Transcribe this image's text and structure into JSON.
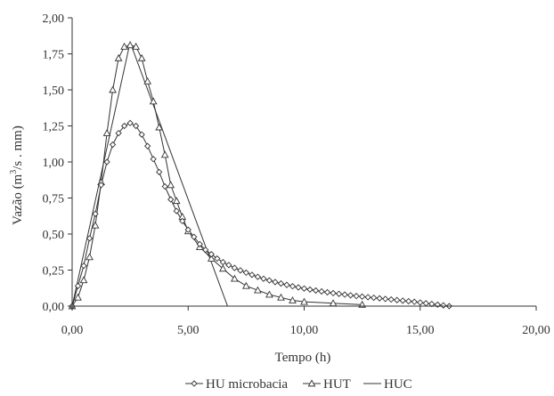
{
  "chart_data": {
    "type": "line",
    "xlabel": "Tempo (h)",
    "ylabel_main": "Vazão (m",
    "ylabel_sup": "3",
    "ylabel_tail": "/s . mm)",
    "xlim": [
      0,
      20
    ],
    "ylim": [
      0,
      2
    ],
    "xticks": [
      "0,00",
      "5,00",
      "10,00",
      "15,00",
      "20,00"
    ],
    "yticks": [
      "0,00",
      "0,25",
      "0,50",
      "0,75",
      "1,00",
      "1,25",
      "1,50",
      "1,75",
      "2,00"
    ],
    "grid": false,
    "legend_position": "bottom",
    "series": [
      {
        "name": "HU microbacia",
        "marker": "diamond",
        "color": "#333333",
        "x": [
          0.0,
          0.25,
          0.5,
          0.75,
          1.0,
          1.25,
          1.5,
          1.75,
          2.0,
          2.25,
          2.5,
          2.75,
          3.0,
          3.25,
          3.5,
          3.75,
          4.0,
          4.25,
          4.5,
          4.75,
          5.0,
          5.25,
          5.5,
          5.75,
          6.0,
          6.25,
          6.5,
          6.75,
          7.0,
          7.25,
          7.5,
          7.75,
          8.0,
          8.25,
          8.5,
          8.75,
          9.0,
          9.25,
          9.5,
          9.75,
          10.0,
          10.25,
          10.5,
          10.75,
          11.0,
          11.25,
          11.5,
          11.75,
          12.0,
          12.25,
          12.5,
          12.75,
          13.0,
          13.25,
          13.5,
          13.75,
          14.0,
          14.25,
          14.5,
          14.75,
          15.0,
          15.25,
          15.5,
          15.75,
          16.0,
          16.25
        ],
        "y": [
          0.0,
          0.14,
          0.28,
          0.47,
          0.64,
          0.84,
          1.0,
          1.12,
          1.2,
          1.25,
          1.27,
          1.25,
          1.19,
          1.11,
          1.02,
          0.93,
          0.83,
          0.74,
          0.66,
          0.59,
          0.53,
          0.48,
          0.43,
          0.39,
          0.36,
          0.33,
          0.305,
          0.285,
          0.265,
          0.248,
          0.232,
          0.217,
          0.203,
          0.19,
          0.178,
          0.167,
          0.157,
          0.147,
          0.138,
          0.13,
          0.122,
          0.115,
          0.108,
          0.102,
          0.096,
          0.09,
          0.085,
          0.08,
          0.075,
          0.07,
          0.066,
          0.062,
          0.058,
          0.054,
          0.05,
          0.046,
          0.042,
          0.038,
          0.034,
          0.03,
          0.025,
          0.02,
          0.015,
          0.01,
          0.005,
          0.0
        ]
      },
      {
        "name": "HUT",
        "marker": "triangle",
        "color": "#333333",
        "x": [
          0.0,
          0.25,
          0.5,
          0.75,
          1.0,
          1.25,
          1.5,
          1.75,
          2.0,
          2.25,
          2.5,
          2.75,
          3.0,
          3.25,
          3.5,
          3.75,
          4.0,
          4.25,
          4.5,
          4.75,
          5.0,
          5.5,
          6.0,
          6.5,
          7.0,
          7.5,
          8.0,
          8.5,
          9.0,
          9.5,
          10.0,
          11.25,
          12.5
        ],
        "y": [
          0.0,
          0.06,
          0.18,
          0.34,
          0.56,
          0.86,
          1.2,
          1.5,
          1.72,
          1.8,
          1.81,
          1.8,
          1.72,
          1.56,
          1.42,
          1.24,
          1.05,
          0.84,
          0.73,
          0.62,
          0.52,
          0.41,
          0.33,
          0.26,
          0.19,
          0.14,
          0.11,
          0.08,
          0.06,
          0.04,
          0.03,
          0.02,
          0.01
        ]
      },
      {
        "name": "HUC",
        "marker": "none",
        "color": "#333333",
        "x": [
          0.0,
          2.5,
          6.7
        ],
        "y": [
          0.0,
          1.83,
          0.0
        ]
      }
    ]
  }
}
